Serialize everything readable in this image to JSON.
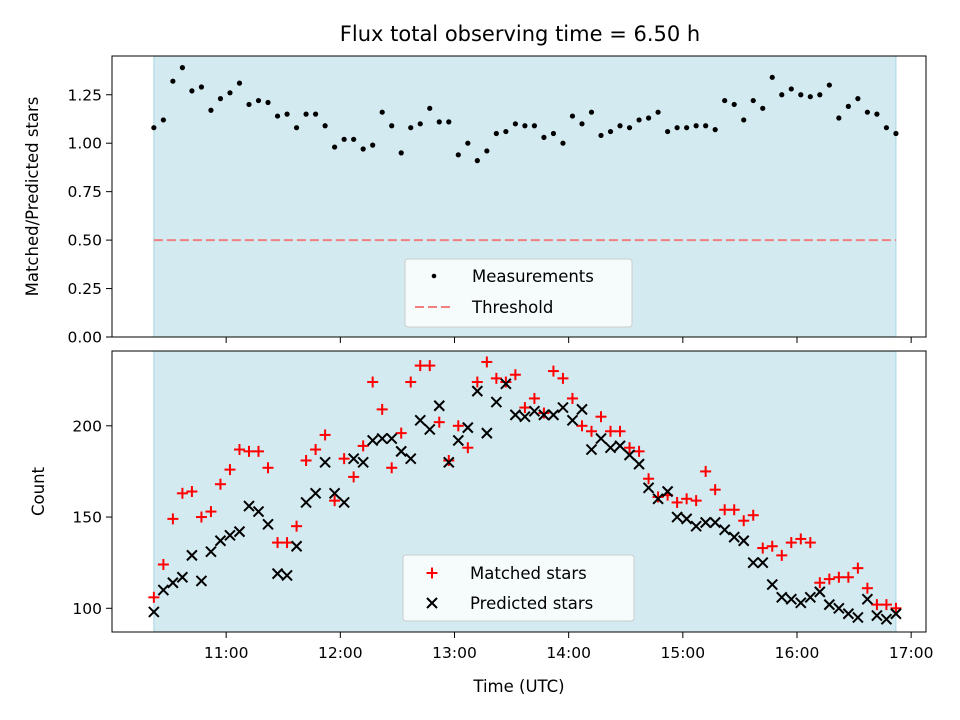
{
  "title": "Flux total observing time = 6.50 h",
  "colors": {
    "background_band": "#d3eaf0",
    "band_edge": "#a9d6e3",
    "measurements": "#000000",
    "threshold": "#f08080",
    "matched": "#ff0000",
    "predicted": "#000000"
  },
  "chart_data": [
    {
      "type": "scatter",
      "ylabel": "Matched/Predicted stars",
      "ylim": [
        0,
        1.45
      ],
      "yticks": [
        0,
        0.25,
        0.5,
        0.75,
        1.0,
        1.25
      ],
      "ytick_labels": [
        "0.00",
        "0.25",
        "0.50",
        "0.75",
        "1.00",
        "1.25"
      ],
      "xlim_hours": [
        10.0,
        17.13
      ],
      "observing_window": [
        "10:22",
        "16:52"
      ],
      "threshold": 0.5,
      "legend": {
        "placement": "lower center",
        "entries": [
          "Measurements",
          "Threshold"
        ]
      },
      "series": [
        {
          "name": "Measurements",
          "x": [
            "10:22",
            "10:27",
            "10:32",
            "10:37",
            "10:42",
            "10:47",
            "10:52",
            "10:57",
            "11:02",
            "11:07",
            "11:12",
            "11:17",
            "11:22",
            "11:27",
            "11:32",
            "11:37",
            "11:42",
            "11:47",
            "11:52",
            "11:57",
            "12:02",
            "12:07",
            "12:12",
            "12:17",
            "12:22",
            "12:27",
            "12:32",
            "12:37",
            "12:42",
            "12:47",
            "12:52",
            "12:57",
            "13:02",
            "13:07",
            "13:12",
            "13:17",
            "13:22",
            "13:27",
            "13:32",
            "13:37",
            "13:42",
            "13:47",
            "13:52",
            "13:57",
            "14:02",
            "14:07",
            "14:12",
            "14:17",
            "14:22",
            "14:27",
            "14:32",
            "14:37",
            "14:42",
            "14:47",
            "14:52",
            "14:57",
            "15:02",
            "15:07",
            "15:12",
            "15:17",
            "15:22",
            "15:27",
            "15:32",
            "15:37",
            "15:42",
            "15:47",
            "15:52",
            "15:57",
            "16:02",
            "16:07",
            "16:12",
            "16:17",
            "16:22",
            "16:27",
            "16:32",
            "16:37",
            "16:42",
            "16:47",
            "16:52"
          ],
          "y": [
            1.08,
            1.12,
            1.32,
            1.39,
            1.27,
            1.29,
            1.17,
            1.23,
            1.26,
            1.31,
            1.2,
            1.22,
            1.21,
            1.14,
            1.15,
            1.08,
            1.15,
            1.15,
            1.09,
            0.98,
            1.02,
            1.02,
            0.97,
            0.99,
            1.16,
            1.09,
            0.95,
            1.08,
            1.1,
            1.18,
            1.11,
            1.11,
            0.94,
            1.0,
            0.91,
            0.96,
            1.05,
            1.06,
            1.1,
            1.09,
            1.09,
            1.03,
            1.05,
            1.0,
            1.14,
            1.1,
            1.16,
            1.04,
            1.06,
            1.09,
            1.08,
            1.12,
            1.13,
            1.16,
            1.06,
            1.08,
            1.08,
            1.09,
            1.09,
            1.07,
            1.22,
            1.2,
            1.12,
            1.22,
            1.18,
            1.34,
            1.25,
            1.28,
            1.25,
            1.24,
            1.25,
            1.3,
            1.13,
            1.19,
            1.23,
            1.16,
            1.15,
            1.08,
            1.05
          ]
        }
      ]
    },
    {
      "type": "scatter",
      "ylabel": "Count",
      "xlabel": "Time (UTC)",
      "ylim": [
        87,
        241
      ],
      "yticks": [
        100,
        150,
        200
      ],
      "ytick_labels": [
        "100",
        "150",
        "200"
      ],
      "xlim_hours": [
        10.0,
        17.13
      ],
      "xticks_hours": [
        11,
        12,
        13,
        14,
        15,
        16,
        17
      ],
      "xtick_labels": [
        "11:00",
        "12:00",
        "13:00",
        "14:00",
        "15:00",
        "16:00",
        "17:00"
      ],
      "observing_window": [
        "10:22",
        "16:52"
      ],
      "legend": {
        "placement": "lower center",
        "entries": [
          "Matched stars",
          "Predicted stars"
        ]
      },
      "series": [
        {
          "name": "Matched stars",
          "x": [
            "10:22",
            "10:27",
            "10:32",
            "10:37",
            "10:42",
            "10:47",
            "10:52",
            "10:57",
            "11:02",
            "11:07",
            "11:12",
            "11:17",
            "11:22",
            "11:27",
            "11:32",
            "11:37",
            "11:42",
            "11:47",
            "11:52",
            "11:57",
            "12:02",
            "12:07",
            "12:12",
            "12:17",
            "12:22",
            "12:27",
            "12:32",
            "12:37",
            "12:42",
            "12:47",
            "12:52",
            "12:57",
            "13:02",
            "13:07",
            "13:12",
            "13:17",
            "13:22",
            "13:27",
            "13:32",
            "13:37",
            "13:42",
            "13:47",
            "13:52",
            "13:57",
            "14:02",
            "14:07",
            "14:12",
            "14:17",
            "14:22",
            "14:27",
            "14:32",
            "14:37",
            "14:42",
            "14:47",
            "14:52",
            "14:57",
            "15:02",
            "15:07",
            "15:12",
            "15:17",
            "15:22",
            "15:27",
            "15:32",
            "15:37",
            "15:42",
            "15:47",
            "15:52",
            "15:57",
            "16:02",
            "16:07",
            "16:12",
            "16:17",
            "16:22",
            "16:27",
            "16:32",
            "16:37",
            "16:42",
            "16:47",
            "16:52"
          ],
          "y": [
            106,
            124,
            149,
            163,
            164,
            150,
            153,
            168,
            176,
            187,
            186,
            186,
            177,
            136,
            136,
            145,
            181,
            187,
            195,
            159,
            182,
            172,
            189,
            224,
            209,
            177,
            196,
            224,
            233,
            233,
            202,
            181,
            200,
            188,
            224,
            235,
            226,
            224,
            228,
            210,
            215,
            207,
            230,
            226,
            215,
            200,
            197,
            205,
            197,
            197,
            188,
            186,
            171,
            161,
            162,
            158,
            160,
            159,
            175,
            165,
            154,
            154,
            148,
            151,
            133,
            134,
            129,
            136,
            138,
            136,
            114,
            116,
            117,
            117,
            122,
            111,
            102,
            102,
            100
          ]
        },
        {
          "name": "Predicted stars",
          "x": [
            "10:22",
            "10:27",
            "10:32",
            "10:37",
            "10:42",
            "10:47",
            "10:52",
            "10:57",
            "11:02",
            "11:07",
            "11:12",
            "11:17",
            "11:22",
            "11:27",
            "11:32",
            "11:37",
            "11:42",
            "11:47",
            "11:52",
            "11:57",
            "12:02",
            "12:07",
            "12:12",
            "12:17",
            "12:22",
            "12:27",
            "12:32",
            "12:37",
            "12:42",
            "12:47",
            "12:52",
            "12:57",
            "13:02",
            "13:07",
            "13:12",
            "13:17",
            "13:22",
            "13:27",
            "13:32",
            "13:37",
            "13:42",
            "13:47",
            "13:52",
            "13:57",
            "14:02",
            "14:07",
            "14:12",
            "14:17",
            "14:22",
            "14:27",
            "14:32",
            "14:37",
            "14:42",
            "14:47",
            "14:52",
            "14:57",
            "15:02",
            "15:07",
            "15:12",
            "15:17",
            "15:22",
            "15:27",
            "15:32",
            "15:37",
            "15:42",
            "15:47",
            "15:52",
            "15:57",
            "16:02",
            "16:07",
            "16:12",
            "16:17",
            "16:22",
            "16:27",
            "16:32",
            "16:37",
            "16:42",
            "16:47",
            "16:52"
          ],
          "y": [
            98,
            110,
            114,
            117,
            129,
            115,
            131,
            137,
            140,
            142,
            156,
            153,
            146,
            119,
            118,
            134,
            158,
            163,
            180,
            163,
            158,
            182,
            180,
            192,
            193,
            193,
            186,
            182,
            203,
            198,
            211,
            180,
            192,
            199,
            219,
            196,
            213,
            223,
            206,
            205,
            208,
            206,
            206,
            210,
            203,
            209,
            187,
            193,
            188,
            189,
            184,
            179,
            166,
            160,
            164,
            150,
            149,
            145,
            147,
            147,
            143,
            139,
            137,
            125,
            125,
            113,
            106,
            105,
            103,
            106,
            109,
            102,
            100,
            97,
            95,
            105,
            96,
            94,
            97
          ]
        }
      ]
    }
  ]
}
